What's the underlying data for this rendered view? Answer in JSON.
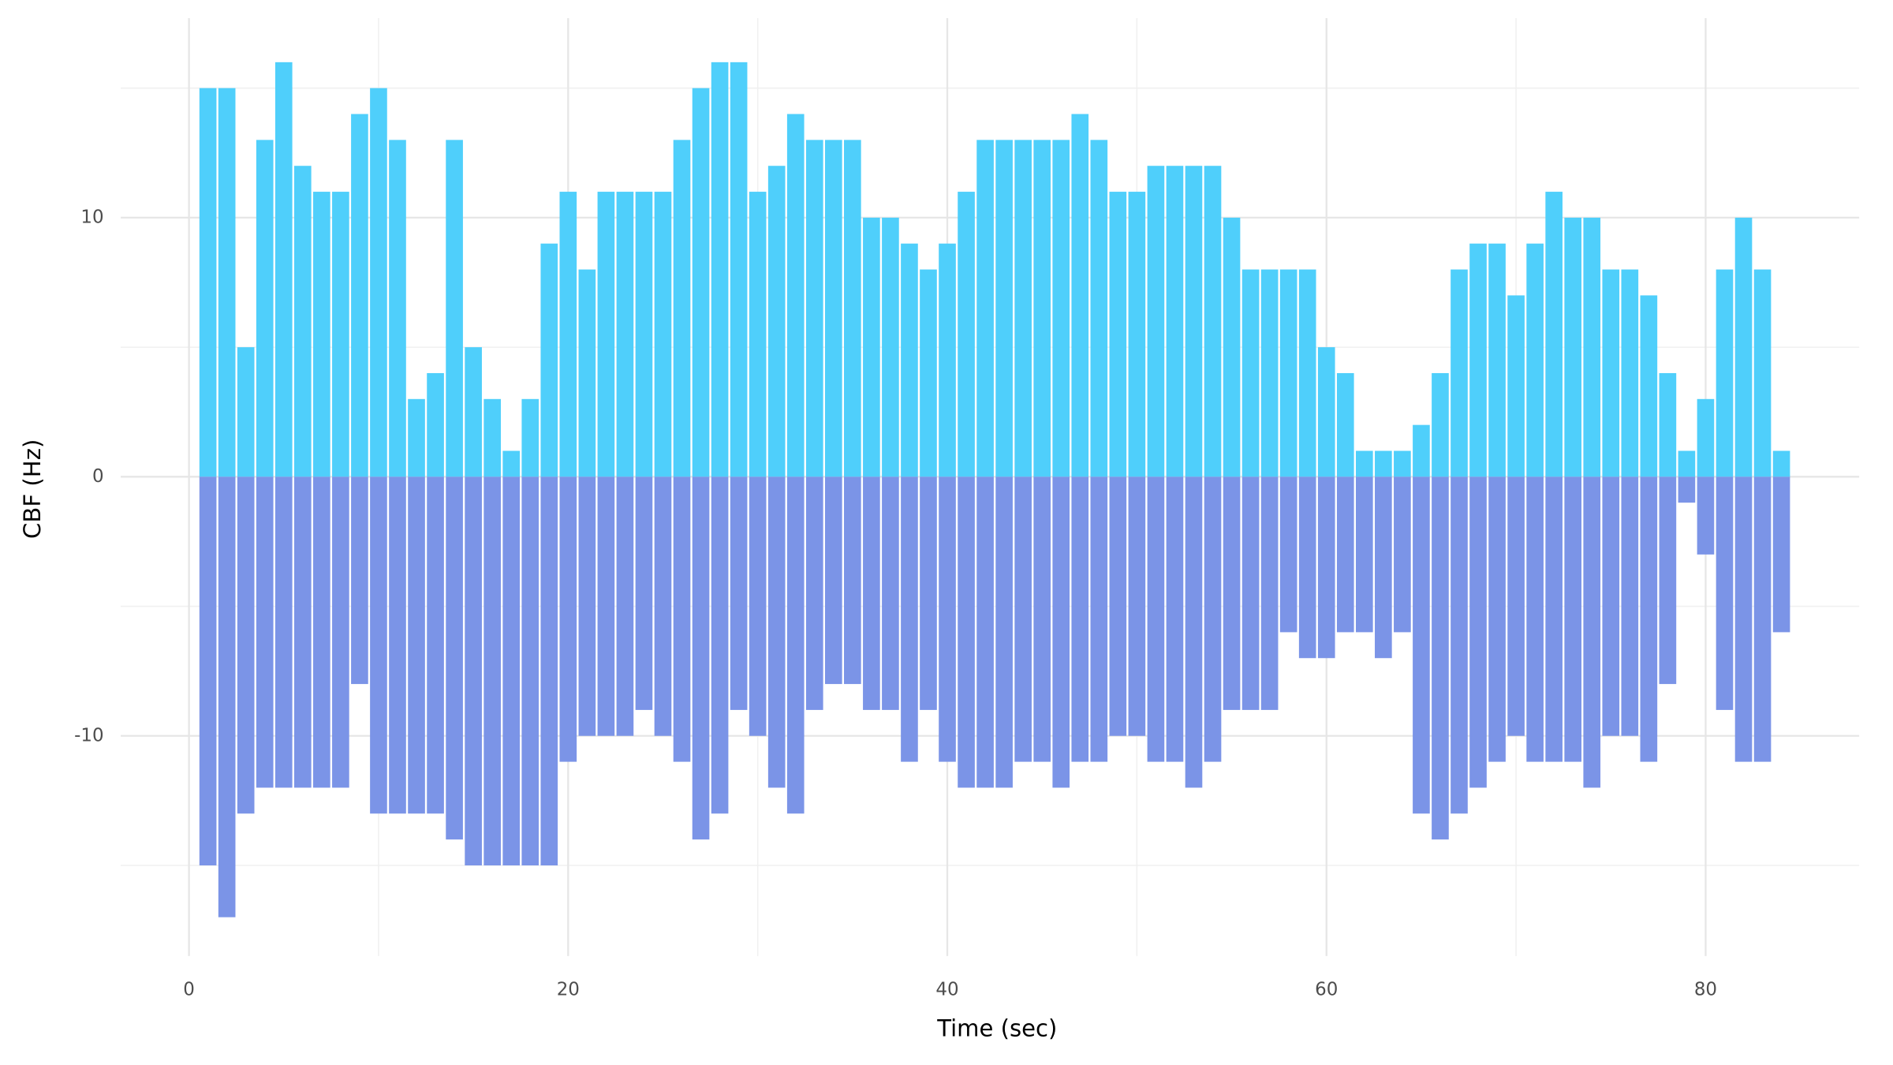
{
  "chart_data": {
    "type": "bar",
    "xlabel": "Time (sec)",
    "ylabel": "CBF (Hz)",
    "x": [
      1,
      2,
      3,
      4,
      5,
      6,
      7,
      8,
      9,
      10,
      11,
      12,
      13,
      14,
      15,
      16,
      17,
      18,
      19,
      20,
      21,
      22,
      23,
      24,
      25,
      26,
      27,
      28,
      29,
      30,
      31,
      32,
      33,
      34,
      35,
      36,
      37,
      38,
      39,
      40,
      41,
      42,
      43,
      44,
      45,
      46,
      47,
      48,
      49,
      50,
      51,
      52,
      53,
      54,
      55,
      56,
      57,
      58,
      59,
      60,
      61,
      62,
      63,
      64,
      65,
      66,
      67,
      68,
      69,
      70,
      71,
      72,
      73,
      74,
      75,
      76,
      77,
      78,
      79,
      80,
      81,
      82,
      83,
      84
    ],
    "series": [
      {
        "color": "#4fcffb",
        "values": [
          15,
          15,
          5,
          13,
          16,
          12,
          11,
          11,
          14,
          15,
          13,
          3,
          4,
          13,
          5,
          3,
          1,
          3,
          9,
          11,
          8,
          11,
          11,
          11,
          11,
          13,
          15,
          16,
          16,
          11,
          12,
          14,
          13,
          13,
          13,
          10,
          10,
          9,
          8,
          9,
          11,
          13,
          13,
          13,
          13,
          13,
          14,
          13,
          11,
          11,
          12,
          12,
          12,
          12,
          10,
          8,
          8,
          8,
          8,
          5,
          4,
          1,
          1,
          1,
          2,
          4,
          8,
          9,
          9,
          7,
          9,
          11,
          10,
          10,
          8,
          8,
          7,
          4,
          1,
          3,
          8,
          10,
          8,
          1
        ]
      },
      {
        "color": "#7b94e7",
        "values": [
          -15,
          -17,
          -13,
          -12,
          -12,
          -12,
          -12,
          -12,
          -8,
          -13,
          -13,
          -13,
          -13,
          -14,
          -15,
          -15,
          -15,
          -15,
          -15,
          -11,
          -10,
          -10,
          -10,
          -9,
          -10,
          -11,
          -14,
          -13,
          -9,
          -10,
          -12,
          -13,
          -9,
          -8,
          -8,
          -9,
          -9,
          -11,
          -9,
          -11,
          -12,
          -12,
          -12,
          -11,
          -11,
          -12,
          -11,
          -11,
          -10,
          -10,
          -11,
          -11,
          -12,
          -11,
          -9,
          -9,
          -9,
          -6,
          -7,
          -7,
          -6,
          -6,
          -7,
          -6,
          -13,
          -14,
          -13,
          -12,
          -11,
          -10,
          -11,
          -11,
          -11,
          -12,
          -10,
          -10,
          -11,
          -8,
          -1,
          -3,
          -9,
          -11,
          -11,
          -6
        ]
      }
    ],
    "xlim": [
      -3.6,
      88.1
    ],
    "ylim": [
      -18.5,
      17.7
    ],
    "xticks": [
      0,
      20,
      40,
      60,
      80
    ],
    "yticks": [
      -10,
      0,
      10
    ],
    "xminor": [
      10,
      30,
      50,
      70
    ],
    "yminor": [
      -15,
      -5,
      5,
      15
    ],
    "grid": true
  }
}
